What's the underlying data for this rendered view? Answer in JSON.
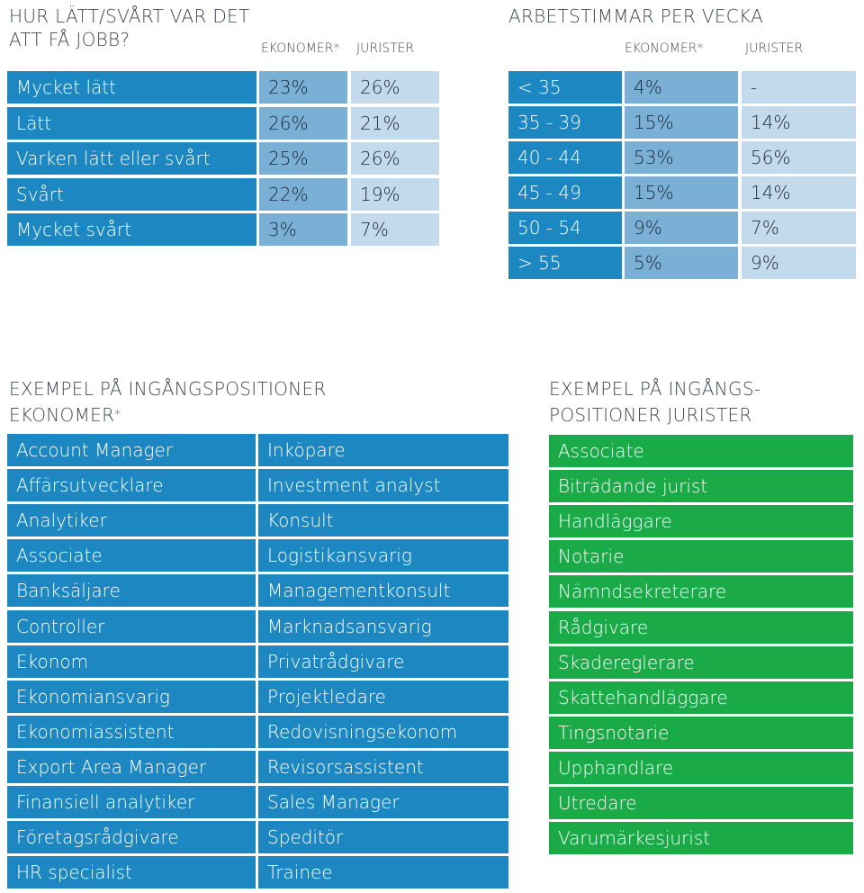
{
  "difficulty": {
    "title_line1": "HUR LÄTT/SVÅRT VAR DET",
    "title_line2": "ATT FÅ JOBB?",
    "col_ekonomer": "EKONOMER",
    "col_jurister": "JURISTER",
    "star": "*",
    "rows": [
      {
        "label": "Mycket lätt",
        "ekonomer": "23%",
        "jurister": "26%"
      },
      {
        "label": "Lätt",
        "ekonomer": "26%",
        "jurister": "21%"
      },
      {
        "label": "Varken lätt eller svårt",
        "ekonomer": "25%",
        "jurister": "26%"
      },
      {
        "label": "Svårt",
        "ekonomer": "22%",
        "jurister": "19%"
      },
      {
        "label": "Mycket svårt",
        "ekonomer": "3%",
        "jurister": "7%"
      }
    ]
  },
  "hours": {
    "title": "ARBETSTIMMAR PER VECKA",
    "col_ekonomer": "EKONOMER",
    "col_jurister": "JURISTER",
    "star": "*",
    "rows": [
      {
        "label": "< 35",
        "ekonomer": "4%",
        "jurister": "-"
      },
      {
        "label": "35 - 39",
        "ekonomer": "15%",
        "jurister": "14%"
      },
      {
        "label": "40 - 44",
        "ekonomer": "53%",
        "jurister": "56%"
      },
      {
        "label": "45 - 49",
        "ekonomer": "15%",
        "jurister": "14%"
      },
      {
        "label": "50 - 54",
        "ekonomer": "9%",
        "jurister": "7%"
      },
      {
        "label": "> 55",
        "ekonomer": "5%",
        "jurister": "9%"
      }
    ]
  },
  "positions_ekonomer": {
    "title_line1": "EXEMPEL PÅ INGÅNGSPOSITIONER",
    "title_line2": "EKONOMER",
    "star": "*",
    "col1": [
      "Account Manager",
      "Affärsutvecklare",
      "Analytiker",
      "Associate",
      "Banksäljare",
      "Controller",
      "Ekonom",
      "Ekonomiansvarig",
      "Ekonomiassistent",
      "Export Area Manager",
      "Finansiell analytiker",
      "Företagsrådgivare",
      "HR specialist"
    ],
    "col2": [
      "Inköpare",
      "Investment analyst",
      "Konsult",
      "Logistikansvarig",
      "Managementkonsult",
      "Marknadsansvarig",
      "Privatrådgivare",
      "Projektledare",
      "Redovisningsekonom",
      "Revisorsassistent",
      "Sales Manager",
      "Speditör",
      "Trainee"
    ]
  },
  "positions_jurister": {
    "title_line1": "EXEMPEL PÅ INGÅNGS-",
    "title_line2": "POSITIONER JURISTER",
    "items": [
      "Associate",
      "Biträdande jurist",
      "Handläggare",
      "Notarie",
      "Nämndsekreterare",
      "Rådgivare",
      "Skadereglerare",
      "Skattehandläggare",
      "Tingsnotarie",
      "Upphandlare",
      "Utredare",
      "Varumärkesjurist"
    ]
  },
  "colors": {
    "dark_blue": "#1d87c2",
    "mid_blue": "#7aafd6",
    "light_blue": "#c3d9ec",
    "green": "#1aab48"
  }
}
